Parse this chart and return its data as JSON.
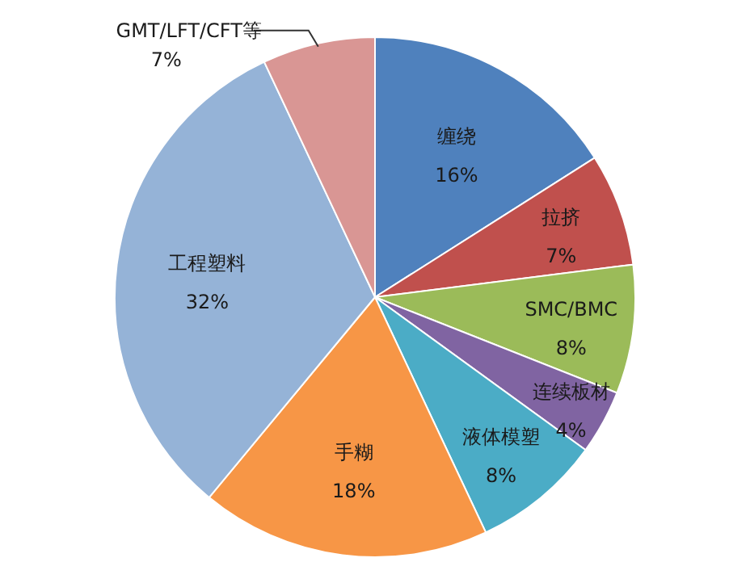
{
  "chart_data": {
    "type": "pie",
    "categories": [
      "缠绕",
      "拉挤",
      "SMC/BMC",
      "连续板材",
      "液体模塑",
      "手糊",
      "工程塑料",
      "GMT/LFT/CFT等"
    ],
    "values": [
      16,
      7,
      8,
      4,
      8,
      18,
      32,
      7
    ],
    "value_labels": [
      "16%",
      "7%",
      "8%",
      "4%",
      "8%",
      "18%",
      "32%",
      "7%"
    ],
    "colors": [
      "#4f81bd",
      "#c0504d",
      "#9bbb59",
      "#8064a2",
      "#4bacc6",
      "#f79646",
      "#95b3d7",
      "#d99694"
    ],
    "legend": false
  }
}
